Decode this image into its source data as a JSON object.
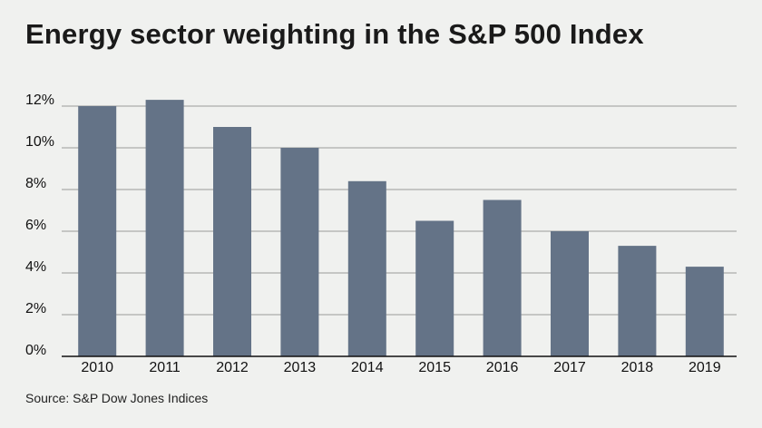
{
  "title": "Energy sector weighting in the S&P 500 Index",
  "source": "Source: S&P Dow Jones Indices",
  "chart_data": {
    "type": "bar",
    "title": "Energy sector weighting in the S&P 500 Index",
    "categories": [
      "2010",
      "2011",
      "2012",
      "2013",
      "2014",
      "2015",
      "2016",
      "2017",
      "2018",
      "2019"
    ],
    "values": [
      12.0,
      12.3,
      11.0,
      10.0,
      8.4,
      6.5,
      7.5,
      6.0,
      5.3,
      4.3
    ],
    "yticks": [
      "0%",
      "2%",
      "4%",
      "6%",
      "8%",
      "10%",
      "12%"
    ],
    "ylim": [
      0,
      12
    ],
    "xlabel": "",
    "ylabel": "",
    "grid": true,
    "bar_color": "#647387",
    "grid_color": "#9a9a9a",
    "baseline_color": "#111111"
  }
}
